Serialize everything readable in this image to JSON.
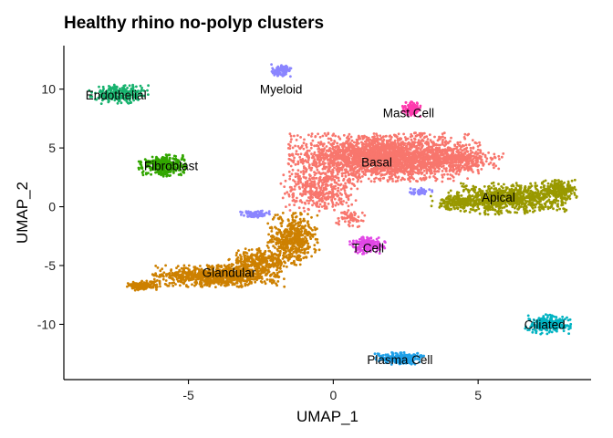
{
  "chart_data": {
    "type": "scatter",
    "title": "Healthy rhino no-polyp clusters",
    "xlabel": "UMAP_1",
    "ylabel": "UMAP_2",
    "xlim": [
      -9.3,
      8.9
    ],
    "ylim": [
      -14.7,
      13.7
    ],
    "xticks": [
      -5,
      0,
      5
    ],
    "yticks": [
      10,
      5,
      0,
      -5,
      -10
    ],
    "grid": false,
    "legend": "none",
    "clusters": [
      {
        "label": "Basal",
        "color": "#F8766D",
        "label_pos": [
          1.5,
          3.8
        ],
        "blobs": [
          [
            1.8,
            4.2,
            3.2,
            2.0,
            2600
          ],
          [
            -0.5,
            1.5,
            1.3,
            1.8,
            400
          ],
          [
            4.3,
            4.0,
            1.5,
            1.0,
            300
          ],
          [
            0.6,
            -1.0,
            0.5,
            0.7,
            60
          ]
        ]
      },
      {
        "label": "Glandular",
        "color": "#CD8000",
        "label_pos": [
          -3.6,
          -5.6
        ],
        "blobs": [
          [
            -4.0,
            -5.9,
            2.2,
            0.9,
            900
          ],
          [
            -1.4,
            -2.8,
            0.9,
            2.2,
            500
          ],
          [
            -6.6,
            -6.7,
            0.5,
            0.4,
            150
          ],
          [
            -2.6,
            -4.6,
            1.0,
            1.0,
            300
          ]
        ]
      },
      {
        "label": "Apical",
        "color": "#999900",
        "label_pos": [
          5.7,
          0.8
        ],
        "blobs": [
          [
            6.0,
            0.7,
            2.0,
            1.3,
            900
          ],
          [
            7.8,
            1.5,
            0.6,
            0.8,
            200
          ],
          [
            4.2,
            0.3,
            0.9,
            0.6,
            150
          ]
        ]
      },
      {
        "label": "Fibroblast",
        "color": "#32A600",
        "label_pos": [
          -5.6,
          3.5
        ],
        "blobs": [
          [
            -5.9,
            3.5,
            0.8,
            0.9,
            320
          ]
        ]
      },
      {
        "label": "Endothelial",
        "color": "#17B26E",
        "label_pos": [
          -7.5,
          9.5
        ],
        "blobs": [
          [
            -7.4,
            9.6,
            1.0,
            0.8,
            260
          ]
        ]
      },
      {
        "label": "Ciliated",
        "color": "#00B3C2",
        "label_pos": [
          7.3,
          -10.0
        ],
        "blobs": [
          [
            7.4,
            -10.0,
            0.8,
            0.8,
            230
          ]
        ]
      },
      {
        "label": "Plasma Cell",
        "color": "#1EA0E8",
        "label_pos": [
          2.3,
          -13.0
        ],
        "blobs": [
          [
            2.3,
            -12.9,
            0.9,
            0.5,
            230
          ]
        ]
      },
      {
        "label": "Myeloid",
        "color": "#8A85FF",
        "label_pos": [
          -1.8,
          10.0
        ],
        "blobs": [
          [
            -1.8,
            11.6,
            0.35,
            0.5,
            100
          ],
          [
            -2.7,
            -0.6,
            0.5,
            0.3,
            80
          ],
          [
            3.0,
            1.3,
            0.4,
            0.3,
            40
          ]
        ]
      },
      {
        "label": "T Cell",
        "color": "#E147E5",
        "label_pos": [
          1.2,
          -3.5
        ],
        "blobs": [
          [
            1.2,
            -3.3,
            0.6,
            0.7,
            180
          ]
        ]
      },
      {
        "label": "Mast Cell",
        "color": "#FF3BAE",
        "label_pos": [
          2.6,
          8.0
        ],
        "blobs": [
          [
            2.7,
            8.3,
            0.3,
            0.6,
            120
          ]
        ]
      }
    ]
  }
}
